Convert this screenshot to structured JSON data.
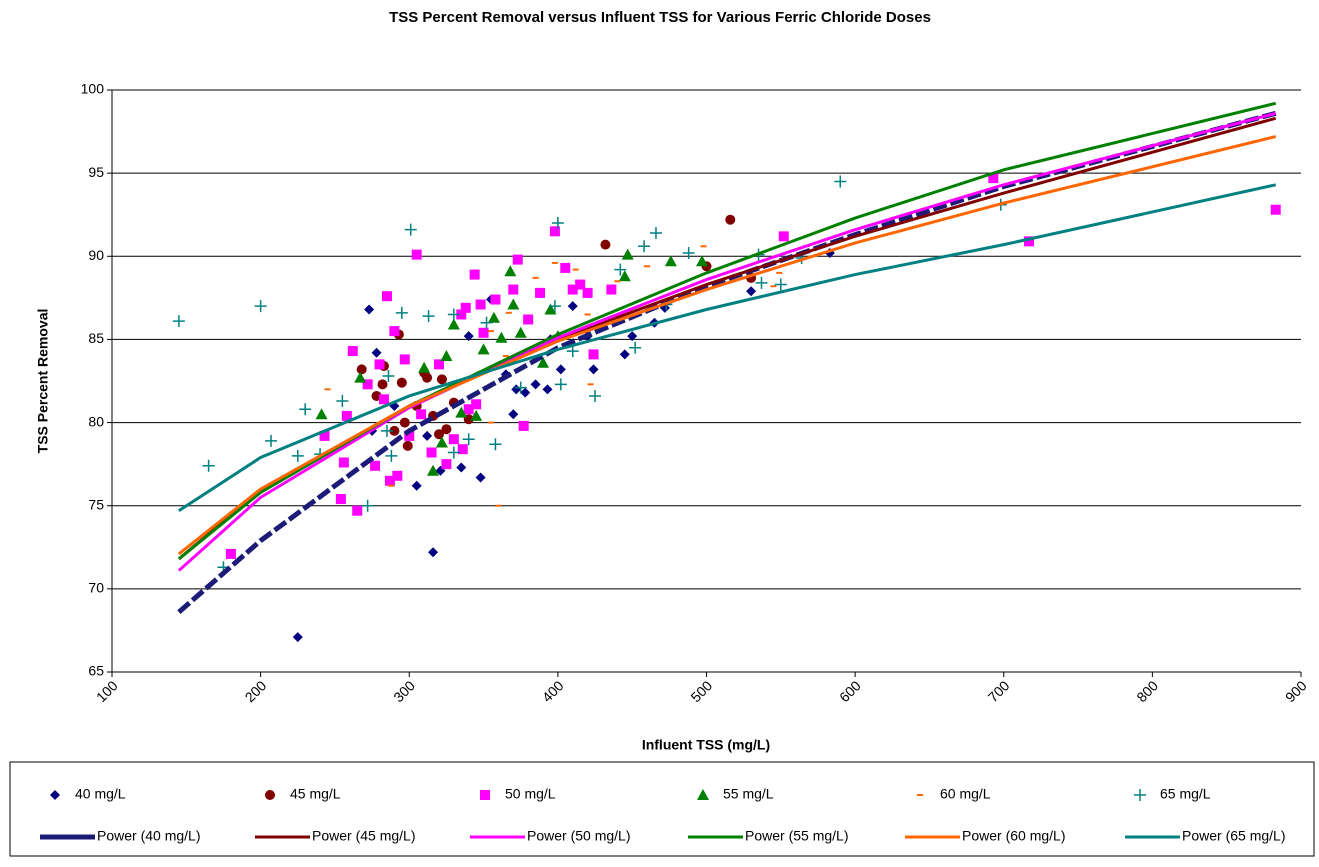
{
  "chart_data": {
    "type": "scatter",
    "title": "TSS Percent Removal versus Influent TSS for Various Ferric Chloride Doses",
    "x_label": "Influent TSS (mg/L)",
    "y_label": "TSS Percent Removal",
    "xlim": [
      100,
      900
    ],
    "ylim": [
      65,
      100
    ],
    "xticks": [
      100,
      200,
      300,
      400,
      500,
      600,
      700,
      800,
      900
    ],
    "yticks": [
      65,
      70,
      75,
      80,
      85,
      90,
      95,
      100
    ],
    "grid": "y",
    "series": [
      {
        "name": "40 mg/L",
        "color": "#000080",
        "marker": "diamond",
        "x": [
          225,
          273,
          278,
          316,
          305,
          321,
          335,
          340,
          348,
          355,
          365,
          370,
          372,
          378,
          385,
          393,
          395,
          402,
          410,
          420,
          424,
          445,
          450,
          465,
          472,
          530,
          583,
          275,
          290,
          312
        ],
        "values": [
          67.1,
          86.8,
          84.2,
          72.2,
          76.2,
          77.1,
          77.3,
          85.2,
          76.7,
          87.4,
          82.9,
          80.5,
          82,
          81.8,
          82.3,
          82,
          85,
          83.2,
          87,
          85.2,
          83.2,
          84.1,
          85.2,
          86,
          86.9,
          87.9,
          90.2,
          79.5,
          81,
          79.2
        ]
      },
      {
        "name": "45 mg/L",
        "color": "#800000",
        "marker": "circle",
        "x": [
          268,
          278,
          282,
          283,
          290,
          293,
          295,
          299,
          305,
          310,
          312,
          316,
          320,
          322,
          325,
          330,
          340,
          432,
          500,
          516,
          530,
          297
        ],
        "values": [
          83.2,
          81.6,
          82.3,
          83.4,
          79.5,
          85.3,
          82.4,
          78.6,
          81,
          83,
          82.7,
          80.4,
          79.3,
          82.6,
          79.6,
          81.2,
          80.2,
          90.7,
          89.4,
          92.2,
          88.7,
          80
        ]
      },
      {
        "name": "50 mg/L",
        "color": "#FF00FF",
        "marker": "square",
        "x": [
          180,
          243,
          254,
          256,
          258,
          262,
          265,
          272,
          277,
          280,
          283,
          285,
          287,
          290,
          292,
          297,
          300,
          305,
          308,
          315,
          320,
          325,
          330,
          335,
          338,
          340,
          344,
          348,
          350,
          358,
          370,
          373,
          377,
          380,
          388,
          398,
          405,
          410,
          415,
          420,
          424,
          436,
          552,
          693,
          717,
          883,
          345,
          336
        ],
        "values": [
          72.1,
          79.2,
          75.4,
          77.6,
          80.4,
          84.3,
          74.7,
          82.3,
          77.4,
          83.5,
          81.4,
          87.6,
          76.5,
          85.5,
          76.8,
          83.8,
          79.2,
          90.1,
          80.5,
          78.2,
          83.5,
          77.5,
          79,
          86.5,
          86.9,
          80.8,
          88.9,
          87.1,
          85.4,
          87.4,
          88,
          89.8,
          79.8,
          86.2,
          87.8,
          91.5,
          89.3,
          88,
          88.3,
          87.8,
          84.1,
          88,
          91.2,
          94.7,
          90.9,
          92.8,
          81.1,
          78.4
        ]
      },
      {
        "name": "55 mg/L",
        "color": "#008000",
        "marker": "triangle",
        "x": [
          241,
          267,
          310,
          316,
          322,
          330,
          335,
          345,
          350,
          357,
          362,
          368,
          370,
          375,
          390,
          395,
          400,
          445,
          447,
          476,
          497,
          325
        ],
        "values": [
          80.5,
          82.7,
          83.3,
          77.1,
          78.8,
          85.9,
          80.6,
          80.4,
          84.4,
          86.3,
          85.1,
          89.1,
          87.1,
          85.4,
          83.6,
          86.8,
          85.2,
          88.8,
          90.1,
          89.7,
          89.7,
          84
        ]
      },
      {
        "name": "60 mg/L",
        "color": "#FF6600",
        "marker": "dash",
        "x": [
          245,
          288,
          360,
          355,
          365,
          385,
          398,
          412,
          422,
          440,
          460,
          498,
          549,
          367,
          355,
          420,
          545
        ],
        "values": [
          82,
          76.2,
          75,
          80,
          84,
          88.7,
          89.6,
          89.2,
          82.3,
          88.5,
          89.4,
          90.6,
          89,
          86.6,
          85.5,
          86.5,
          88.2
        ]
      },
      {
        "name": "65 mg/L",
        "color": "#008080",
        "marker": "plus",
        "x": [
          145,
          165,
          175,
          200,
          207,
          225,
          230,
          240,
          255,
          272,
          285,
          288,
          295,
          301,
          313,
          330,
          340,
          352,
          358,
          375,
          398,
          400,
          402,
          410,
          425,
          442,
          452,
          458,
          466,
          473,
          488,
          535,
          537,
          550,
          564,
          590,
          698,
          330,
          286
        ],
        "values": [
          86.1,
          77.4,
          71.3,
          87,
          78.9,
          78,
          80.8,
          78.1,
          81.3,
          75,
          79.5,
          78,
          86.6,
          91.6,
          86.4,
          86.5,
          79,
          86,
          78.7,
          82.1,
          87,
          92,
          82.3,
          84.3,
          81.6,
          89.2,
          84.5,
          90.6,
          91.4,
          87.1,
          90.2,
          90.1,
          88.4,
          88.3,
          89.9,
          94.5,
          93.1,
          78.2,
          82.8
        ]
      }
    ],
    "trendlines": [
      {
        "name": "Power (40 mg/L)",
        "color": "#1C1C78",
        "style": "dashed",
        "x": [
          145,
          200,
          300,
          400,
          500,
          600,
          700,
          883
        ],
        "values": [
          68.6,
          72.9,
          79.5,
          84.5,
          88.2,
          91.3,
          94.2,
          98.6
        ]
      },
      {
        "name": "Power (45 mg/L)",
        "color": "#800000",
        "style": "solid",
        "x": [
          145,
          200,
          300,
          400,
          500,
          600,
          700,
          883
        ],
        "values": [
          71.8,
          75.9,
          81,
          85,
          88.3,
          91.2,
          93.8,
          98.3
        ]
      },
      {
        "name": "Power (50 mg/L)",
        "color": "#FF00FF",
        "style": "solid",
        "x": [
          145,
          200,
          300,
          400,
          500,
          600,
          700,
          883
        ],
        "values": [
          71.1,
          75.5,
          80.9,
          85.1,
          88.6,
          91.6,
          94.3,
          98.6
        ]
      },
      {
        "name": "Power (55 mg/L)",
        "color": "#008000",
        "style": "solid",
        "x": [
          145,
          200,
          300,
          400,
          500,
          600,
          700,
          883
        ],
        "values": [
          71.8,
          75.8,
          81,
          85.3,
          89,
          92.3,
          95.2,
          99.2
        ]
      },
      {
        "name": "Power (60 mg/L)",
        "color": "#FF6600",
        "style": "solid",
        "x": [
          145,
          200,
          300,
          400,
          500,
          600,
          700,
          883
        ],
        "values": [
          72.1,
          76,
          81,
          84.9,
          88,
          90.8,
          93.2,
          97.2
        ]
      },
      {
        "name": "Power (65 mg/L)",
        "color": "#008080",
        "style": "solid",
        "x": [
          145,
          200,
          300,
          400,
          500,
          600,
          700,
          883
        ],
        "values": [
          74.7,
          77.9,
          81.6,
          84.4,
          86.8,
          88.9,
          90.7,
          94.3
        ]
      }
    ]
  }
}
